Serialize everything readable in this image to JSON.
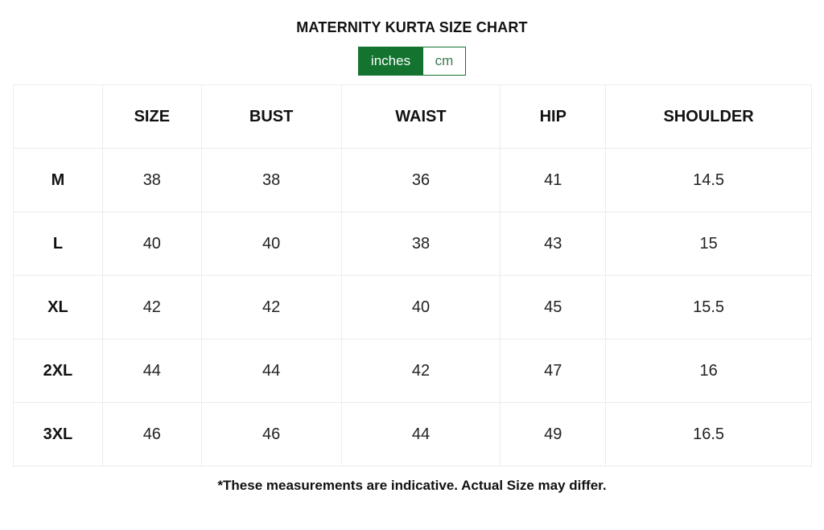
{
  "title": "MATERNITY KURTA SIZE CHART",
  "units": {
    "options": [
      "inches",
      "cm"
    ],
    "selected": "inches",
    "accent": "#13732f"
  },
  "table": {
    "headers": [
      "",
      "SIZE",
      "BUST",
      "WAIST",
      "HIP",
      "SHOULDER"
    ],
    "rows": [
      [
        "M",
        "38",
        "38",
        "36",
        "41",
        "14.5"
      ],
      [
        "L",
        "40",
        "40",
        "38",
        "43",
        "15"
      ],
      [
        "XL",
        "42",
        "42",
        "40",
        "45",
        "15.5"
      ],
      [
        "2XL",
        "44",
        "44",
        "42",
        "47",
        "16"
      ],
      [
        "3XL",
        "46",
        "46",
        "44",
        "49",
        "16.5"
      ]
    ]
  },
  "note": "*These measurements are indicative. Actual Size may differ."
}
